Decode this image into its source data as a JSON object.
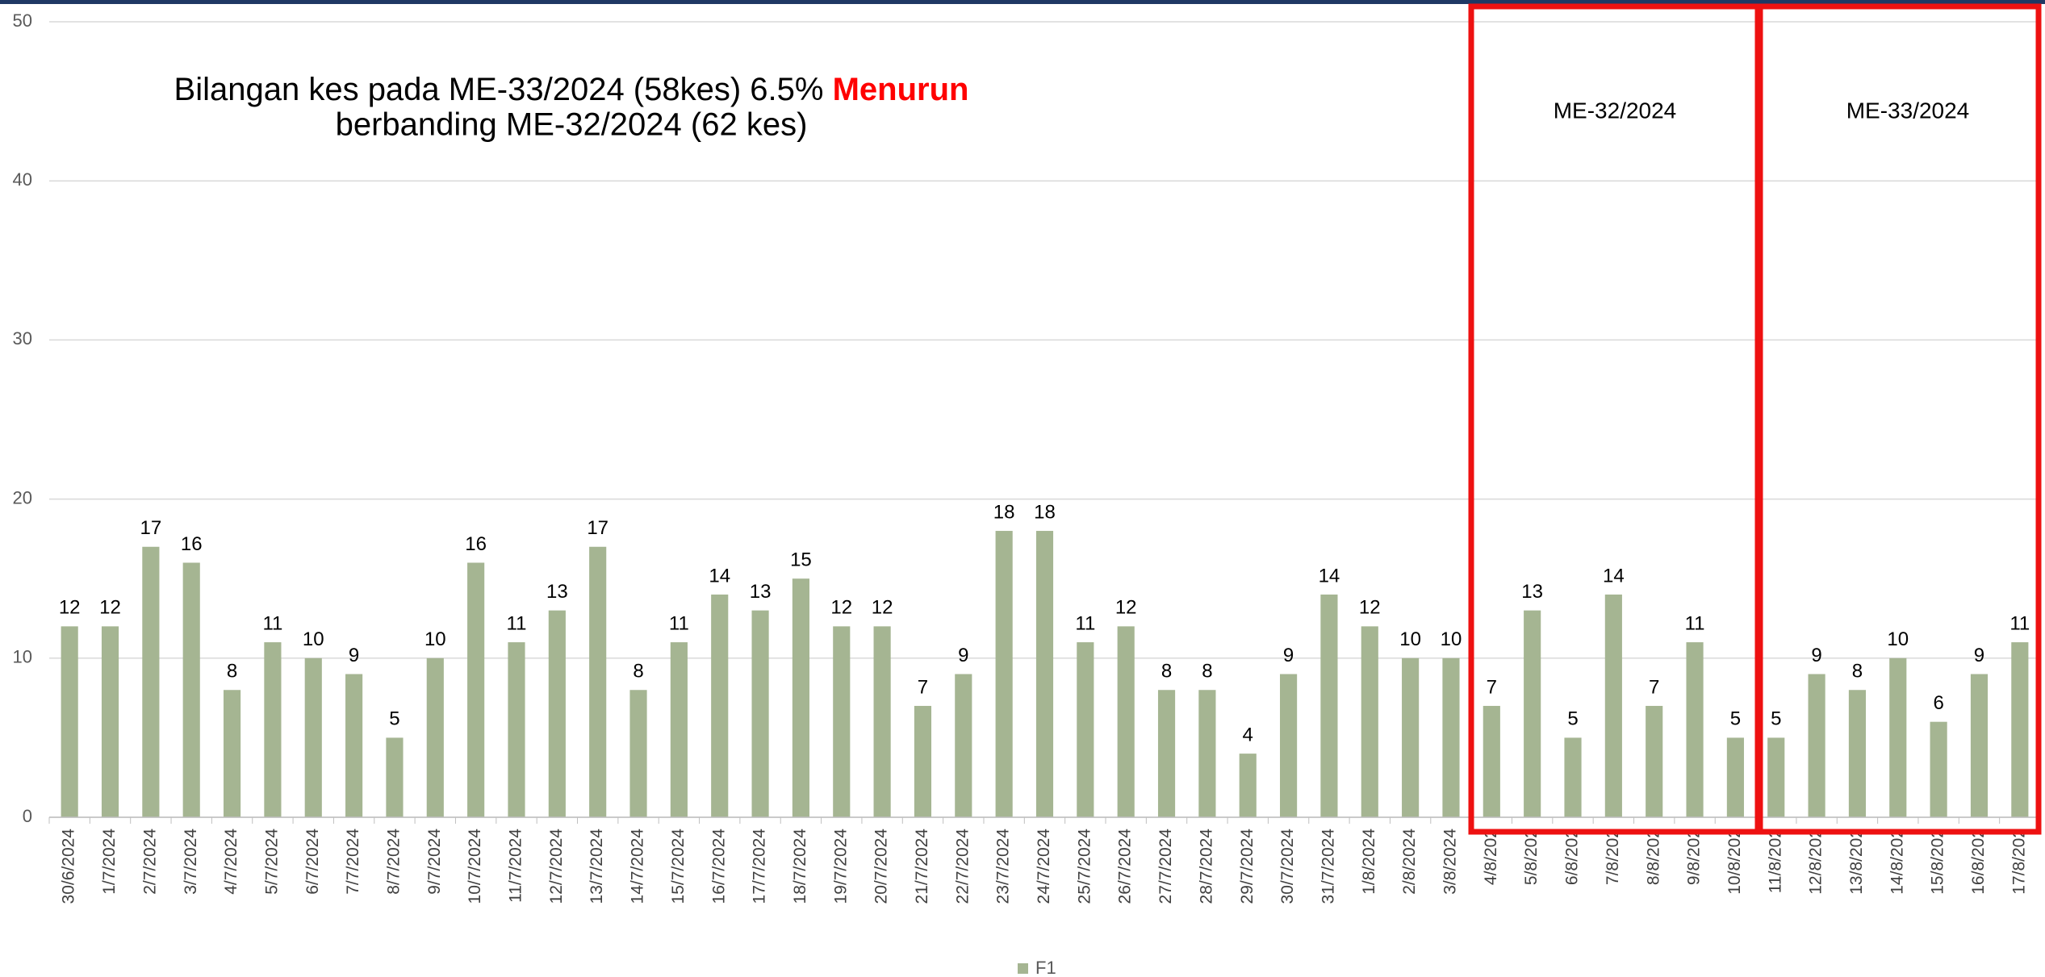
{
  "chart_data": {
    "type": "bar",
    "title_parts": [
      "Bilangan kes pada ME-33/2024 (58kes) 6.5% ",
      "Menurun",
      "berbanding ME-32/2024 (62 kes)"
    ],
    "annotations": [
      "ME-32/2024",
      "ME-33/2024"
    ],
    "categories": [
      "30/6/2024",
      "1/7/2024",
      "2/7/2024",
      "3/7/2024",
      "4/7/2024",
      "5/7/2024",
      "6/7/2024",
      "7/7/2024",
      "8/7/2024",
      "9/7/2024",
      "10/7/2024",
      "11/7/2024",
      "12/7/2024",
      "13/7/2024",
      "14/7/2024",
      "15/7/2024",
      "16/7/2024",
      "17/7/2024",
      "18/7/2024",
      "19/7/2024",
      "20/7/2024",
      "21/7/2024",
      "22/7/2024",
      "23/7/2024",
      "24/7/2024",
      "25/7/2024",
      "26/7/2024",
      "27/7/2024",
      "28/7/2024",
      "29/7/2024",
      "30/7/2024",
      "31/7/2024",
      "1/8/2024",
      "2/8/2024",
      "3/8/2024",
      "4/8/202",
      "5/8/202",
      "6/8/202",
      "7/8/202",
      "8/8/202",
      "9/8/202",
      "10/8/202",
      "11/8/202",
      "12/8/202",
      "13/8/202",
      "14/8/202",
      "15/8/202",
      "16/8/202",
      "17/8/202"
    ],
    "series": [
      {
        "name": "F1",
        "color": "#a5b592",
        "values": [
          12,
          12,
          17,
          16,
          8,
          11,
          10,
          9,
          5,
          10,
          16,
          11,
          13,
          17,
          8,
          11,
          14,
          13,
          15,
          12,
          12,
          7,
          9,
          18,
          18,
          11,
          12,
          8,
          8,
          4,
          9,
          14,
          12,
          10,
          10,
          7,
          13,
          5,
          14,
          7,
          11,
          5,
          5,
          9,
          8,
          10,
          6,
          9,
          11
        ]
      }
    ],
    "ylim": [
      0,
      50
    ],
    "yticks": [
      0,
      10,
      20,
      30,
      40,
      50
    ],
    "grid": true,
    "legend": "bottom"
  }
}
